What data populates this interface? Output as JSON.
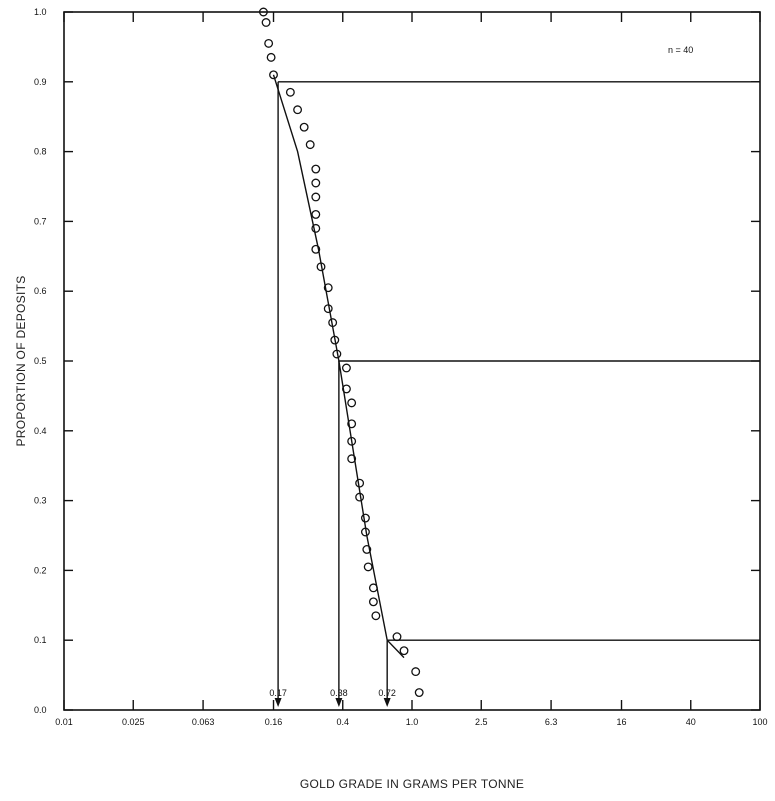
{
  "chart_data": {
    "type": "scatter",
    "xscale": "log",
    "xlabel": "GOLD GRADE  IN GRAMS PER TONNE",
    "ylabel": "PROPORTION  OF  DEPOSITS",
    "xlim": [
      0.01,
      100
    ],
    "ylim": [
      0.0,
      1.0
    ],
    "x_ticks": [
      0.01,
      0.025,
      0.063,
      0.16,
      0.4,
      1.0,
      2.5,
      6.3,
      16,
      40,
      100
    ],
    "x_tick_labels": [
      "0.01",
      "0.025",
      "0.063",
      "0.16",
      "0.4",
      "1.0",
      "2.5",
      "6.3",
      "16",
      "40",
      "100"
    ],
    "y_ticks": [
      0.0,
      0.1,
      0.2,
      0.3,
      0.4,
      0.5,
      0.6,
      0.7,
      0.8,
      0.9,
      1.0
    ],
    "y_tick_labels": [
      "0.0",
      "0.1",
      "0.2",
      "0.3",
      "0.4",
      "0.5",
      "0.6",
      "0.7",
      "0.8",
      "0.9",
      "1.0"
    ],
    "annotation_n": "n = 40",
    "grid": false,
    "points": [
      {
        "x": 0.14,
        "y": 1.0
      },
      {
        "x": 0.145,
        "y": 0.985
      },
      {
        "x": 0.15,
        "y": 0.955
      },
      {
        "x": 0.155,
        "y": 0.935
      },
      {
        "x": 0.16,
        "y": 0.91
      },
      {
        "x": 0.2,
        "y": 0.885
      },
      {
        "x": 0.22,
        "y": 0.86
      },
      {
        "x": 0.24,
        "y": 0.835
      },
      {
        "x": 0.26,
        "y": 0.81
      },
      {
        "x": 0.28,
        "y": 0.775
      },
      {
        "x": 0.28,
        "y": 0.755
      },
      {
        "x": 0.28,
        "y": 0.735
      },
      {
        "x": 0.28,
        "y": 0.71
      },
      {
        "x": 0.28,
        "y": 0.69
      },
      {
        "x": 0.28,
        "y": 0.66
      },
      {
        "x": 0.3,
        "y": 0.635
      },
      {
        "x": 0.33,
        "y": 0.605
      },
      {
        "x": 0.33,
        "y": 0.575
      },
      {
        "x": 0.35,
        "y": 0.555
      },
      {
        "x": 0.36,
        "y": 0.53
      },
      {
        "x": 0.37,
        "y": 0.51
      },
      {
        "x": 0.42,
        "y": 0.49
      },
      {
        "x": 0.42,
        "y": 0.46
      },
      {
        "x": 0.45,
        "y": 0.44
      },
      {
        "x": 0.45,
        "y": 0.41
      },
      {
        "x": 0.45,
        "y": 0.385
      },
      {
        "x": 0.45,
        "y": 0.36
      },
      {
        "x": 0.5,
        "y": 0.325
      },
      {
        "x": 0.5,
        "y": 0.305
      },
      {
        "x": 0.54,
        "y": 0.275
      },
      {
        "x": 0.54,
        "y": 0.255
      },
      {
        "x": 0.55,
        "y": 0.23
      },
      {
        "x": 0.56,
        "y": 0.205
      },
      {
        "x": 0.6,
        "y": 0.175
      },
      {
        "x": 0.6,
        "y": 0.155
      },
      {
        "x": 0.62,
        "y": 0.135
      },
      {
        "x": 0.82,
        "y": 0.105
      },
      {
        "x": 0.9,
        "y": 0.085
      },
      {
        "x": 1.05,
        "y": 0.055
      },
      {
        "x": 1.1,
        "y": 0.025
      }
    ],
    "fit_curve": [
      {
        "x": 0.16,
        "y": 0.91
      },
      {
        "x": 0.22,
        "y": 0.8
      },
      {
        "x": 0.29,
        "y": 0.66
      },
      {
        "x": 0.38,
        "y": 0.5
      },
      {
        "x": 0.55,
        "y": 0.25
      },
      {
        "x": 0.72,
        "y": 0.1
      },
      {
        "x": 0.9,
        "y": 0.075
      }
    ],
    "reference_lines": [
      {
        "y": 0.9,
        "x": 0.17,
        "label": "0.17"
      },
      {
        "y": 0.5,
        "x": 0.38,
        "label": "0.38"
      },
      {
        "y": 0.1,
        "x": 0.72,
        "label": "0.72"
      }
    ]
  }
}
